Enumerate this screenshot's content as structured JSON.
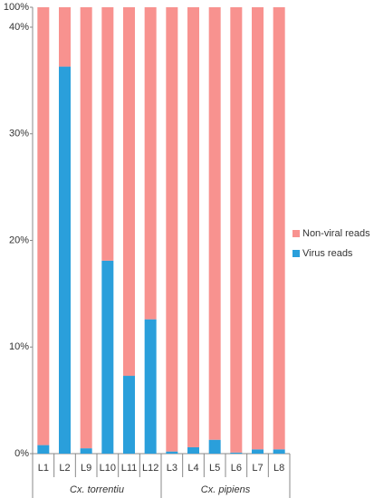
{
  "chart_data": {
    "type": "stacked-bar",
    "categories": [
      "L1",
      "L2",
      "L9",
      "L10",
      "L11",
      "L12",
      "L3",
      "L4",
      "L5",
      "L6",
      "L7",
      "L8"
    ],
    "groups": [
      {
        "name": "Cx. torrentiu",
        "size": 6
      },
      {
        "name": "Cx. pipiens",
        "size": 6
      }
    ],
    "series": [
      {
        "name": "Virus reads",
        "color": "#2a9fdb",
        "values": [
          0.8,
          36.3,
          0.5,
          18.1,
          7.3,
          12.6,
          0.2,
          0.6,
          1.3,
          0.1,
          0.4,
          0.4
        ]
      },
      {
        "name": "Non-viral reads",
        "color": "#f8928f",
        "values": [
          99.2,
          63.7,
          99.5,
          81.9,
          92.7,
          87.4,
          99.8,
          99.4,
          98.7,
          99.9,
          99.6,
          99.6
        ]
      }
    ],
    "ylim": [
      0,
      100
    ],
    "yticks": [
      {
        "value": 0,
        "label": "0%"
      },
      {
        "value": 10,
        "label": "10%"
      },
      {
        "value": 20,
        "label": "20%"
      },
      {
        "value": 30,
        "label": "30%"
      },
      {
        "value": 40,
        "label": "40%"
      },
      {
        "value": 100,
        "label": "100%"
      }
    ],
    "legend": "right"
  }
}
